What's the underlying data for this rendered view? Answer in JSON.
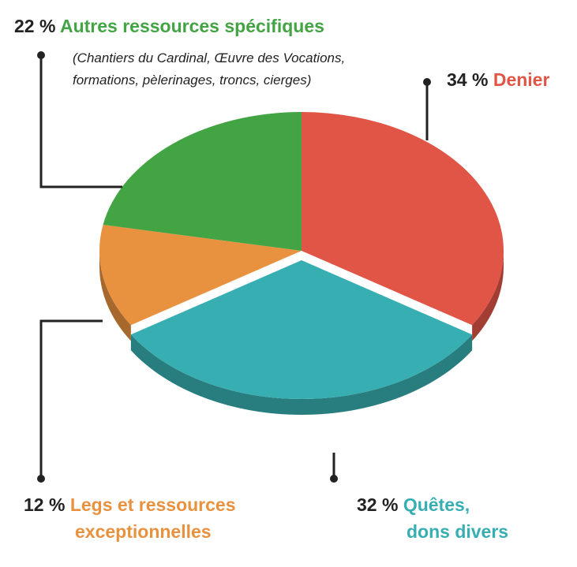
{
  "chart_data": {
    "type": "pie",
    "title": "",
    "slices": [
      {
        "key": "denier",
        "name": "Denier",
        "value": 34,
        "pct_label": "34 %",
        "color": "#E05546"
      },
      {
        "key": "quetes",
        "name_lines": [
          "Quêtes,",
          "dons divers"
        ],
        "value": 32,
        "pct_label": "32 %",
        "color": "#37AEB1"
      },
      {
        "key": "legs",
        "name_lines": [
          "Legs et ressources",
          "exceptionnelles"
        ],
        "value": 12,
        "pct_label": "12 %",
        "color": "#E8913F"
      },
      {
        "key": "autres",
        "name": "Autres ressources spécifiques",
        "value": 22,
        "pct_label": "22 %",
        "color": "#43A444",
        "note_lines": [
          "(Chantiers du Cardinal, Œuvre des Vocations,",
          "formations, pèlerinages, troncs, cierges)"
        ]
      }
    ],
    "start_angle_deg": 0,
    "direction": "clockwise",
    "style": "3d-exploded"
  }
}
